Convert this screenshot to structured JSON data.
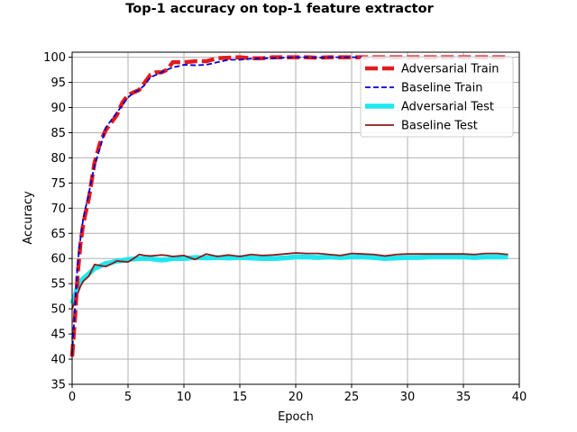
{
  "chart_data": {
    "type": "line",
    "title": "Top-1 accuracy on top-1 feature extractor",
    "xlabel": "Epoch",
    "ylabel": "Accuracy",
    "xlim": [
      0,
      40
    ],
    "ylim": [
      35,
      101
    ],
    "xticks": [
      0,
      5,
      10,
      15,
      20,
      25,
      30,
      35,
      40
    ],
    "yticks": [
      35,
      40,
      45,
      50,
      55,
      60,
      65,
      70,
      75,
      80,
      85,
      90,
      95,
      100
    ],
    "grid": true,
    "legend_position": "top-right",
    "x": [
      0,
      0.25,
      0.5,
      0.75,
      1,
      1.5,
      2,
      2.5,
      3,
      3.5,
      4,
      4.5,
      5,
      5.5,
      6,
      6.5,
      7,
      7.5,
      8,
      8.5,
      9,
      9.5,
      10,
      11,
      12,
      13,
      14,
      15,
      16,
      17,
      18,
      19,
      20,
      21,
      22,
      23,
      24,
      25,
      26,
      27,
      28,
      29,
      30,
      31,
      32,
      33,
      34,
      35,
      36,
      37,
      38,
      39
    ],
    "series": [
      {
        "name": "Adversarial Train",
        "color": "#e31a1c",
        "style": "dashed-thick",
        "values": [
          40.5,
          48,
          57,
          63,
          67,
          72,
          79,
          83,
          85.5,
          87,
          88.5,
          91,
          92.5,
          93,
          93.5,
          95,
          96.5,
          97,
          97,
          97.5,
          99,
          99,
          99,
          99.2,
          99.2,
          99.8,
          99.9,
          100,
          99.8,
          99.8,
          100,
          100,
          100,
          100,
          99.9,
          100,
          100,
          100,
          100,
          100,
          100,
          100,
          100,
          100,
          100,
          100,
          100,
          100,
          100,
          100,
          100,
          100
        ]
      },
      {
        "name": "Baseline Train",
        "color": "#0000cd",
        "style": "dashed",
        "values": [
          41,
          50,
          59,
          64,
          68,
          73,
          78.5,
          82,
          86,
          87.5,
          89,
          90.5,
          92,
          93,
          93.5,
          94.5,
          96,
          96.5,
          97,
          97.5,
          98,
          98.2,
          98.5,
          98.4,
          98.5,
          99,
          99.5,
          99.5,
          99.7,
          99.8,
          99.8,
          99.9,
          100,
          100,
          99.9,
          100,
          100,
          100,
          100,
          100,
          100,
          100,
          100,
          100,
          100,
          100,
          100,
          100,
          100,
          100,
          100,
          100
        ]
      },
      {
        "name": "Adversarial Test",
        "color": "#1ee8ef",
        "style": "solid-thick",
        "values": [
          51,
          52.5,
          54.5,
          55.5,
          56,
          57,
          58,
          58.5,
          59,
          59.2,
          59.5,
          59.6,
          59.8,
          59.9,
          60,
          60,
          60,
          59.8,
          59.7,
          59.8,
          60,
          60,
          60,
          60.2,
          60.1,
          60.2,
          60.1,
          60.2,
          60.1,
          60,
          60,
          60.1,
          60.3,
          60.3,
          60.2,
          60.3,
          60.2,
          60.3,
          60.3,
          60.2,
          60,
          60.1,
          60.2,
          60.2,
          60.3,
          60.3,
          60.3,
          60.3,
          60.2,
          60.3,
          60.3,
          60.3
        ]
      },
      {
        "name": "Baseline Test",
        "color": "#8b1a1a",
        "style": "solid",
        "values": [
          50,
          51.5,
          53,
          54.5,
          55.5,
          56.5,
          58.8,
          58.6,
          58.4,
          58.9,
          59.5,
          59.4,
          59.3,
          60,
          60.8,
          60.6,
          60.5,
          60.6,
          60.7,
          60.6,
          60.4,
          60.5,
          60.6,
          59.8,
          60.9,
          60.4,
          60.7,
          60.4,
          60.8,
          60.6,
          60.7,
          60.9,
          61.1,
          61,
          61,
          60.8,
          60.6,
          61,
          60.9,
          60.8,
          60.5,
          60.8,
          60.9,
          60.9,
          60.9,
          60.9,
          60.9,
          60.9,
          60.8,
          61,
          61,
          60.8
        ]
      }
    ]
  }
}
